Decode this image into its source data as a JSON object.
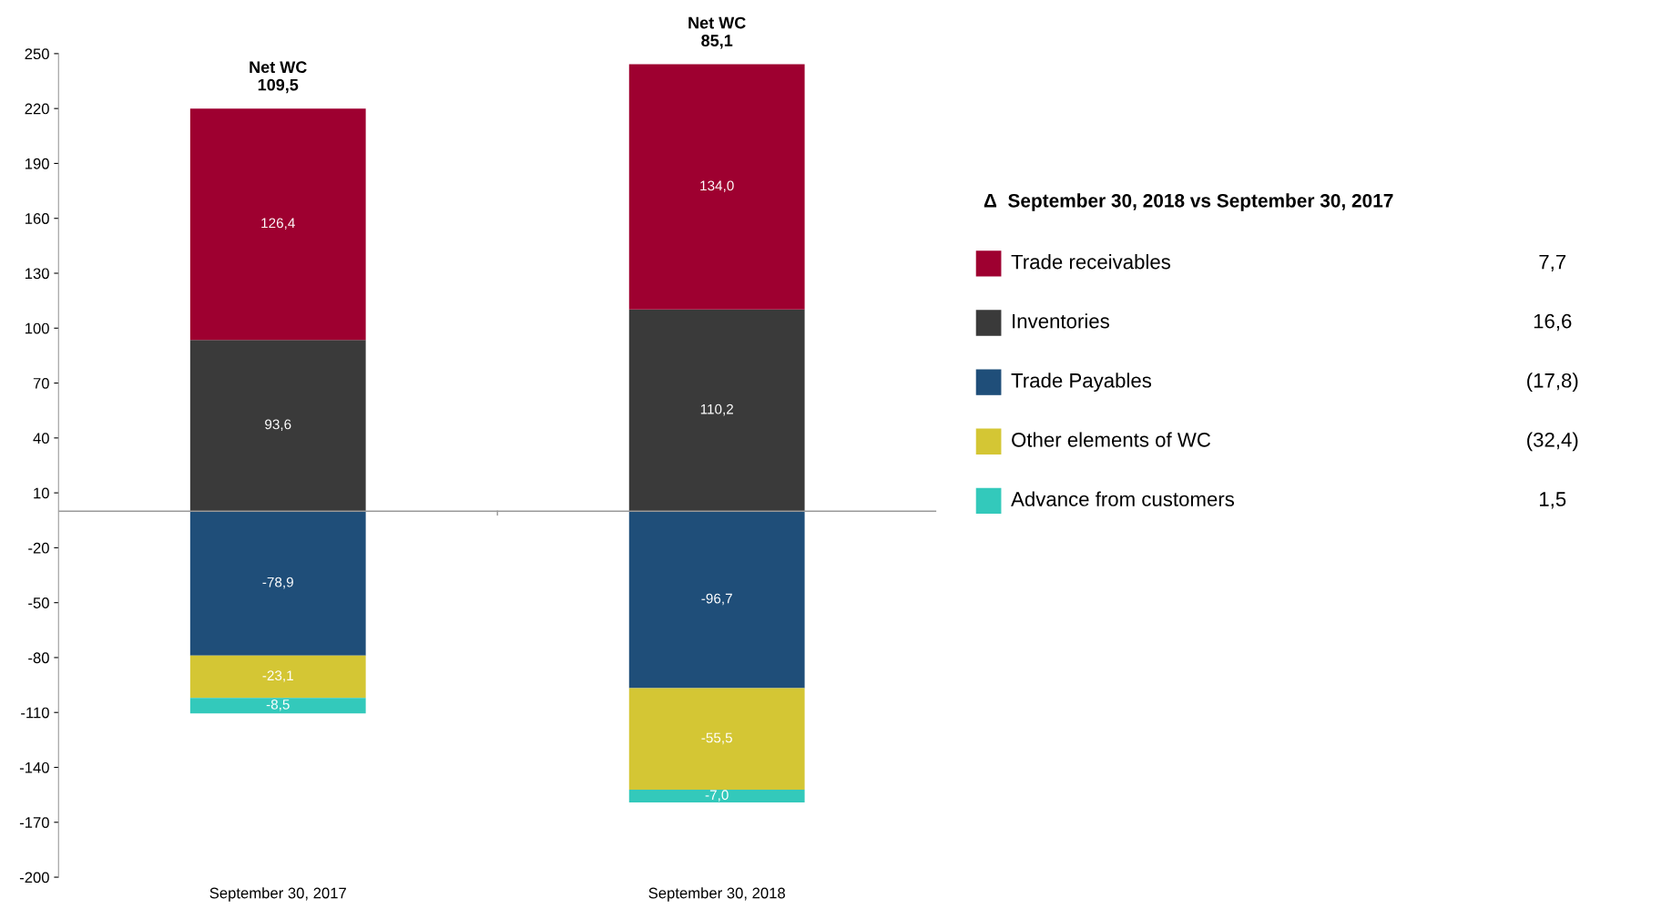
{
  "chart_data": {
    "type": "bar",
    "stacked": true,
    "categories": [
      "September 30, 2017",
      "September 30, 2018"
    ],
    "series": [
      {
        "name": "Inventories",
        "color": "#3a3a3a",
        "values": [
          93.6,
          110.2
        ],
        "value_labels": [
          "93,6",
          "110,2"
        ]
      },
      {
        "name": "Trade receivables",
        "color": "#9e0030",
        "values": [
          126.4,
          134.0
        ],
        "value_labels": [
          "126,4",
          "134,0"
        ]
      },
      {
        "name": "Trade Payables",
        "color": "#1f4e79",
        "values": [
          -78.9,
          -96.7
        ],
        "value_labels": [
          "-78,9",
          "-96,7"
        ]
      },
      {
        "name": "Other elements of WC",
        "color": "#d4c634",
        "values": [
          -23.1,
          -55.5
        ],
        "value_labels": [
          "-23,1",
          "-55,5"
        ]
      },
      {
        "name": "Advance from customers",
        "color": "#33c9bb",
        "values": [
          -8.5,
          -7.0
        ],
        "value_labels": [
          "-8,5",
          "-7,0"
        ]
      }
    ],
    "totals": [
      "Net WC\n109,5",
      "Net WC\n85,1"
    ],
    "ylim": [
      -200,
      250
    ],
    "yticks": [
      -200,
      -170,
      -140,
      -110,
      -80,
      -50,
      -20,
      10,
      40,
      70,
      100,
      130,
      160,
      190,
      220,
      250
    ],
    "grid": false,
    "legend": "right",
    "legend_title": "Δ  September 30, 2018 vs September 30, 2017",
    "annotations": [
      "7,7",
      "16,6",
      "(17,8)",
      "(32,4)",
      "1,5"
    ]
  }
}
